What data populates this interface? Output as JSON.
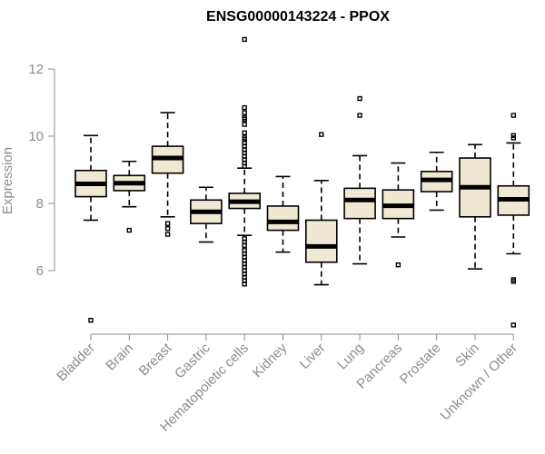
{
  "chart_data": {
    "type": "boxplot",
    "title": "ENSG00000143224 - PPOX",
    "xlabel": "",
    "ylabel": "Expression",
    "ylim": [
      4.0,
      13.2
    ],
    "yticks": [
      6,
      8,
      10,
      12
    ],
    "grid": false,
    "box_fill": "#efe9d3",
    "box_stroke": "#000000",
    "median_color": "#000000",
    "axis_color": "#8c8c8c",
    "categories": [
      "Bladder",
      "Brain",
      "Breast",
      "Gastric",
      "Hematopoietic cells",
      "Kidney",
      "Liver",
      "Lung",
      "Pancreas",
      "Prostate",
      "Skin",
      "Unknown / Other"
    ],
    "boxes": [
      {
        "q1": 8.2,
        "median": 8.58,
        "q3": 8.98,
        "whisker_low": 7.5,
        "whisker_high": 10.02,
        "outliers": [
          4.52
        ]
      },
      {
        "q1": 8.38,
        "median": 8.6,
        "q3": 8.83,
        "whisker_low": 7.9,
        "whisker_high": 9.25,
        "outliers": [
          7.2
        ]
      },
      {
        "q1": 8.9,
        "median": 9.35,
        "q3": 9.7,
        "whisker_low": 7.6,
        "whisker_high": 10.7,
        "outliers": [
          7.4,
          7.25,
          7.08
        ]
      },
      {
        "q1": 7.4,
        "median": 7.75,
        "q3": 8.1,
        "whisker_low": 6.85,
        "whisker_high": 8.48,
        "outliers": []
      },
      {
        "q1": 7.85,
        "median": 8.05,
        "q3": 8.3,
        "whisker_low": 7.05,
        "whisker_high": 9.05,
        "outliers": [
          12.88,
          10.85,
          10.7,
          10.55,
          10.5,
          10.35,
          10.1,
          9.95,
          9.9,
          9.8,
          9.7,
          9.6,
          9.5,
          9.4,
          9.3,
          9.2,
          9.1,
          6.95,
          6.85,
          6.75,
          6.6,
          6.5,
          6.4,
          6.3,
          6.2,
          6.1,
          6.0,
          5.9,
          5.8,
          5.7,
          5.6
        ]
      },
      {
        "q1": 7.2,
        "median": 7.45,
        "q3": 7.92,
        "whisker_low": 6.55,
        "whisker_high": 8.8,
        "outliers": []
      },
      {
        "q1": 6.25,
        "median": 6.72,
        "q3": 7.5,
        "whisker_low": 5.58,
        "whisker_high": 8.68,
        "outliers": [
          10.05
        ]
      },
      {
        "q1": 7.55,
        "median": 8.1,
        "q3": 8.45,
        "whisker_low": 6.2,
        "whisker_high": 9.42,
        "outliers": [
          11.12,
          10.62
        ]
      },
      {
        "q1": 7.55,
        "median": 7.93,
        "q3": 8.4,
        "whisker_low": 7.0,
        "whisker_high": 9.2,
        "outliers": [
          6.17
        ]
      },
      {
        "q1": 8.35,
        "median": 8.7,
        "q3": 8.95,
        "whisker_low": 7.8,
        "whisker_high": 9.52,
        "outliers": []
      },
      {
        "q1": 7.6,
        "median": 8.48,
        "q3": 9.35,
        "whisker_low": 6.05,
        "whisker_high": 9.75,
        "outliers": []
      },
      {
        "q1": 7.65,
        "median": 8.12,
        "q3": 8.52,
        "whisker_low": 6.5,
        "whisker_high": 9.8,
        "outliers": [
          10.62,
          10.02,
          9.95,
          5.73,
          5.68,
          4.38
        ]
      }
    ]
  }
}
